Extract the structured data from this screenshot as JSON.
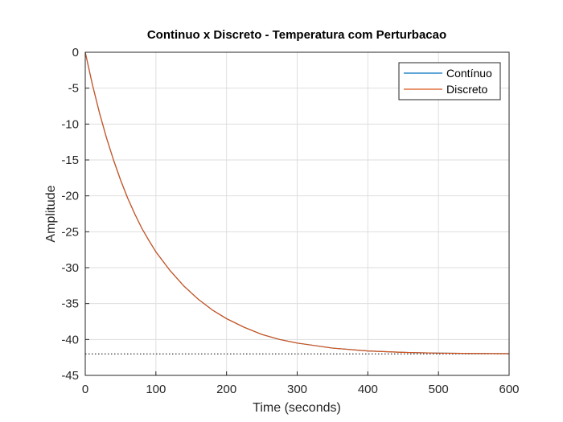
{
  "chart_data": {
    "type": "line",
    "title": "Continuo x Discreto - Temperatura com Perturbacao",
    "xlabel": "Time (seconds)",
    "ylabel": "Amplitude",
    "xlim": [
      0,
      600
    ],
    "ylim": [
      -45,
      0
    ],
    "xticks": [
      "0",
      "100",
      "200",
      "300",
      "400",
      "500",
      "600"
    ],
    "yticks": [
      "0",
      "-5",
      "-10",
      "-15",
      "-20",
      "-25",
      "-30",
      "-35",
      "-40",
      "-45"
    ],
    "grid": true,
    "legend_position": "top-right",
    "series": [
      {
        "name": "Contínuo",
        "color": "#0072BD",
        "x": [
          0,
          10,
          20,
          30,
          40,
          50,
          60,
          70,
          80,
          90,
          100,
          120,
          140,
          160,
          180,
          200,
          225,
          250,
          275,
          300,
          350,
          400,
          450,
          500,
          550,
          600
        ],
        "y": [
          0,
          -4.45,
          -8.4,
          -11.9,
          -15.0,
          -17.8,
          -20.3,
          -22.5,
          -24.5,
          -26.2,
          -27.8,
          -30.4,
          -32.6,
          -34.4,
          -35.9,
          -37.1,
          -38.3,
          -39.3,
          -40.0,
          -40.5,
          -41.2,
          -41.6,
          -41.8,
          -41.9,
          -41.95,
          -41.98
        ]
      },
      {
        "name": "Discreto",
        "color": "#D95319",
        "x": [
          0,
          10,
          20,
          30,
          40,
          50,
          60,
          70,
          80,
          90,
          100,
          120,
          140,
          160,
          180,
          200,
          225,
          250,
          275,
          300,
          350,
          400,
          450,
          500,
          550,
          600
        ],
        "y": [
          0,
          -4.45,
          -8.4,
          -11.9,
          -15.0,
          -17.8,
          -20.3,
          -22.5,
          -24.5,
          -26.2,
          -27.8,
          -30.4,
          -32.6,
          -34.4,
          -35.9,
          -37.1,
          -38.3,
          -39.3,
          -40.0,
          -40.5,
          -41.2,
          -41.6,
          -41.8,
          -41.9,
          -41.95,
          -41.98
        ]
      }
    ],
    "reference_line": {
      "y": -42,
      "style": "dotted",
      "color": "#000000"
    }
  }
}
